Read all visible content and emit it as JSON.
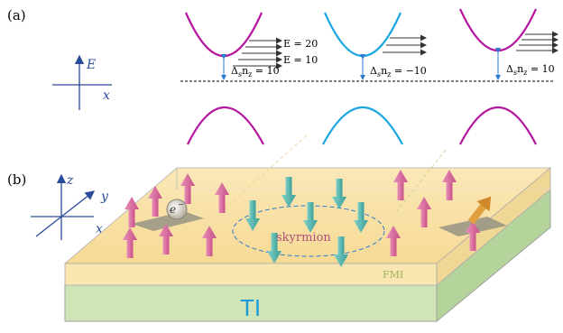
{
  "panel_a": {
    "label": "(a)",
    "axis_y": "E",
    "axis_x": "x",
    "energy_labels": [
      "E = 20",
      "E = 10"
    ],
    "gap_labels": [
      {
        "text": "Δ",
        "sub": "s",
        "rest": "n",
        "sub2": "z",
        "value": " = 10"
      },
      {
        "text": "Δ",
        "sub": "s",
        "rest": "n",
        "sub2": "z",
        "value": " = −10"
      },
      {
        "text": "Δ",
        "sub": "s",
        "rest": "n",
        "sub2": "z",
        "value": " = 10"
      }
    ],
    "band_colors": [
      "#b5179e",
      "#1aa7e0",
      "#b5179e"
    ]
  },
  "panel_b": {
    "label": "(b)",
    "axis_z": "z",
    "axis_y": "y",
    "axis_x": "x",
    "electron": "e",
    "electron_sup": "−",
    "skyrmion": "skyrmion",
    "fmi": "FMI",
    "ti": "TI",
    "colors": {
      "up_arrow": "#d96a9a",
      "down_arrow": "#5ab8b0",
      "fmi_top": "#f7dda0",
      "ti_side": "#c8e0b0"
    }
  }
}
